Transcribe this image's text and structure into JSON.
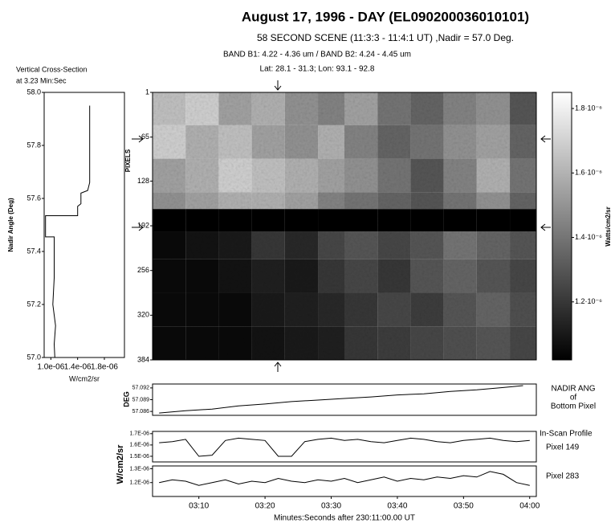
{
  "header": {
    "title": "August 17, 1996 - DAY (EL090200036010101)",
    "subtitle": "58 SECOND SCENE (11:3:3 - 11:4:1 UT) ,Nadir = 57.0 Deg.",
    "bands": "BAND B1: 4.22 - 4.36 um / BAND B2: 4.24 - 4.45 um",
    "location": "Lat: 28.1 - 31.3; Lon: 93.1 - 92.8"
  },
  "chart_data": [
    {
      "type": "line",
      "title": [
        "Vertical Cross-Section",
        "at 3.23 Min:Sec"
      ],
      "xlabel": "W/cm2/sr",
      "ylabel": "Nadir Angle (Deg)",
      "color": "#000000",
      "xlim": [
        9e-07,
        2.1e-06
      ],
      "xticks": [
        {
          "value": 1e-06,
          "label": "1.0e-06"
        },
        {
          "value": 1.4e-06,
          "label": "1.4e-06"
        },
        {
          "value": 1.8e-06,
          "label": "1.8e-06"
        }
      ],
      "ylim": [
        57,
        58
      ],
      "yticks": [
        {
          "value": 57,
          "label": "57.0"
        },
        57.2,
        57.4,
        57.6,
        57.8,
        {
          "value": 58,
          "label": "58.0"
        }
      ],
      "x": [
        1.58e-06,
        1.58e-06,
        1.55e-06,
        1.45e-06,
        1.45e-06,
        1.4e-06,
        1.4e-06,
        9.2e-07,
        9.2e-07,
        1.05e-06,
        1.05e-06,
        1.03e-06,
        1.07e-06,
        1.05e-06,
        1.06e-06
      ],
      "values": [
        57.95,
        57.66,
        57.63,
        57.62,
        57.58,
        57.57,
        57.535,
        57.535,
        57.455,
        57.455,
        57.3,
        57.2,
        57.12,
        57.05,
        57.0
      ]
    },
    {
      "type": "heatmap",
      "ylabel": "PIXELS",
      "colorbar_label": "Watts/cm2/sr",
      "xlim": [
        183,
        241
      ],
      "ylim": [
        384,
        1
      ],
      "yticks": [
        1,
        65,
        128,
        192,
        256,
        320,
        384
      ],
      "x_edges": [
        183,
        188,
        193,
        198,
        203,
        208,
        212,
        217,
        222,
        227,
        232,
        237,
        241
      ],
      "y_edges": [
        1,
        48,
        96,
        144,
        168,
        200,
        240,
        288,
        336,
        384
      ],
      "z": [
        [
          1.65e-06,
          1.7e-06,
          1.55e-06,
          1.6e-06,
          1.5e-06,
          1.45e-06,
          1.55e-06,
          1.4e-06,
          1.35e-06,
          1.45e-06,
          1.5e-06,
          1.3e-06
        ],
        [
          1.7e-06,
          1.6e-06,
          1.65e-06,
          1.55e-06,
          1.5e-06,
          1.6e-06,
          1.45e-06,
          1.35e-06,
          1.4e-06,
          1.5e-06,
          1.55e-06,
          1.35e-06
        ],
        [
          1.55e-06,
          1.6e-06,
          1.7e-06,
          1.65e-06,
          1.6e-06,
          1.55e-06,
          1.5e-06,
          1.4e-06,
          1.3e-06,
          1.45e-06,
          1.6e-06,
          1.4e-06
        ],
        [
          1.5e-06,
          1.55e-06,
          1.6e-06,
          1.6e-06,
          1.55e-06,
          1.45e-06,
          1.4e-06,
          1.35e-06,
          1.3e-06,
          1.4e-06,
          1.5e-06,
          1.35e-06
        ],
        [
          1.02e-06,
          1.02e-06,
          1.02e-06,
          1.02e-06,
          1.02e-06,
          1.02e-06,
          1.02e-06,
          1.02e-06,
          1.02e-06,
          1.02e-06,
          1.02e-06,
          1.02e-06
        ],
        [
          1.05e-06,
          1.08e-06,
          1.1e-06,
          1.2e-06,
          1.15e-06,
          1.25e-06,
          1.3e-06,
          1.25e-06,
          1.3e-06,
          1.4e-06,
          1.35e-06,
          1.3e-06
        ],
        [
          1.05e-06,
          1.05e-06,
          1.08e-06,
          1.12e-06,
          1.1e-06,
          1.2e-06,
          1.25e-06,
          1.2e-06,
          1.3e-06,
          1.35e-06,
          1.3e-06,
          1.25e-06
        ],
        [
          1.05e-06,
          1.05e-06,
          1.05e-06,
          1.1e-06,
          1.12e-06,
          1.15e-06,
          1.2e-06,
          1.25e-06,
          1.22e-06,
          1.3e-06,
          1.35e-06,
          1.28e-06
        ],
        [
          1.05e-06,
          1.05e-06,
          1.05e-06,
          1.08e-06,
          1.1e-06,
          1.12e-06,
          1.2e-06,
          1.22e-06,
          1.25e-06,
          1.28e-06,
          1.3e-06,
          1.25e-06
        ]
      ],
      "clim": [
        1.02e-06,
        1.85e-06
      ],
      "cticks": [
        {
          "value": 1.2e-06,
          "label": "1.2·10⁻⁶"
        },
        {
          "value": 1.4e-06,
          "label": "1.4·10⁻⁶"
        },
        {
          "value": 1.6e-06,
          "label": "1.6·10⁻⁶"
        },
        {
          "value": 1.8e-06,
          "label": "1.8·10⁻⁶"
        }
      ]
    },
    {
      "type": "line",
      "ylabel": "DEG",
      "right_label": [
        "NADIR ANG",
        "of",
        "Bottom Pixel"
      ],
      "color": "#000000",
      "xlim": [
        183,
        241
      ],
      "ylim": [
        57.085,
        57.093
      ],
      "yticks": [
        57.086,
        57.089,
        57.092
      ],
      "x": [
        184,
        188,
        192,
        196,
        200,
        204,
        208,
        212,
        216,
        220,
        224,
        228,
        232,
        236,
        239
      ],
      "values": [
        57.0856,
        57.0862,
        57.0866,
        57.0874,
        57.0879,
        57.0885,
        57.0889,
        57.0893,
        57.0897,
        57.0902,
        57.0905,
        57.0911,
        57.0915,
        57.0921,
        57.0926
      ]
    },
    {
      "type": "line",
      "ylabel": "W/cm2/sr",
      "right_label": [
        "In-Scan Profile",
        "Pixel 149"
      ],
      "color": "#000000",
      "xlim": [
        183,
        241
      ],
      "ylim": [
        1.45e-06,
        1.72e-06
      ],
      "yticks": [
        {
          "value": 1.5e-06,
          "label": "1.5E-06"
        },
        {
          "value": 1.6e-06,
          "label": "1.6E-06"
        },
        {
          "value": 1.7e-06,
          "label": "1.7E-06"
        }
      ],
      "x": [
        184,
        186,
        188,
        190,
        192,
        194,
        196,
        198,
        200,
        202,
        204,
        206,
        208,
        210,
        212,
        214,
        216,
        218,
        220,
        222,
        224,
        226,
        228,
        230,
        232,
        234,
        236,
        238,
        240
      ],
      "values": [
        1.62e-06,
        1.63e-06,
        1.65e-06,
        1.5e-06,
        1.51e-06,
        1.64e-06,
        1.66e-06,
        1.65e-06,
        1.64e-06,
        1.5e-06,
        1.5e-06,
        1.63e-06,
        1.65e-06,
        1.66e-06,
        1.64e-06,
        1.65e-06,
        1.63e-06,
        1.62e-06,
        1.64e-06,
        1.66e-06,
        1.65e-06,
        1.63e-06,
        1.62e-06,
        1.64e-06,
        1.65e-06,
        1.66e-06,
        1.64e-06,
        1.63e-06,
        1.64e-06
      ]
    },
    {
      "type": "line",
      "right_label": [
        "Pixel 283"
      ],
      "color": "#000000",
      "xlabel": "Minutes:Seconds after 230:11:00.00 UT",
      "xlim": [
        183,
        241
      ],
      "xticks": [
        {
          "value": 190,
          "label": "03:10"
        },
        {
          "value": 200,
          "label": "03:20"
        },
        {
          "value": 210,
          "label": "03:30"
        },
        {
          "value": 220,
          "label": "03:40"
        },
        {
          "value": 230,
          "label": "03:50"
        },
        {
          "value": 240,
          "label": "04:00"
        }
      ],
      "ylim": [
        1.1e-06,
        1.32e-06
      ],
      "yticks": [
        {
          "value": 1.2e-06,
          "label": "1.2E-06"
        },
        {
          "value": 1.3e-06,
          "label": "1.3E-06"
        }
      ],
      "x": [
        184,
        186,
        188,
        190,
        192,
        194,
        196,
        198,
        200,
        202,
        204,
        206,
        208,
        210,
        212,
        214,
        216,
        218,
        220,
        222,
        224,
        226,
        228,
        230,
        232,
        234,
        236,
        238,
        240
      ],
      "values": [
        1.2e-06,
        1.22e-06,
        1.21e-06,
        1.18e-06,
        1.2e-06,
        1.22e-06,
        1.19e-06,
        1.21e-06,
        1.2e-06,
        1.23e-06,
        1.21e-06,
        1.2e-06,
        1.22e-06,
        1.21e-06,
        1.23e-06,
        1.2e-06,
        1.22e-06,
        1.24e-06,
        1.21e-06,
        1.23e-06,
        1.22e-06,
        1.24e-06,
        1.23e-06,
        1.25e-06,
        1.24e-06,
        1.28e-06,
        1.26e-06,
        1.2e-06,
        1.18e-06
      ]
    }
  ]
}
